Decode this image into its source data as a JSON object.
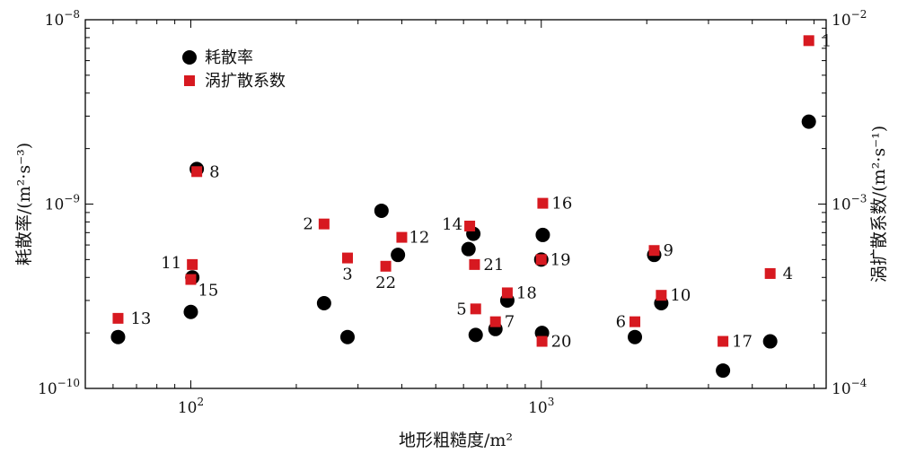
{
  "chart_data": {
    "type": "scatter",
    "xlabel": "地形粗糙度/m²",
    "ylabel_left": "耗散率/(m²·s⁻³)",
    "ylabel_right": "涡扩散系数/(m²·s⁻¹)",
    "x_scale": "log",
    "y_left_scale": "log",
    "y_right_scale": "log",
    "xlim": [
      50,
      6500
    ],
    "ylim_left": [
      1e-10,
      1e-08
    ],
    "ylim_right": [
      0.0001,
      0.01
    ],
    "x_ticks": [
      {
        "value": 100,
        "base": "10",
        "exp": "2"
      },
      {
        "value": 1000,
        "base": "10",
        "exp": "3"
      }
    ],
    "y_left_ticks": [
      {
        "value": 1e-10,
        "base": "10",
        "exp": "−10"
      },
      {
        "value": 1e-09,
        "base": "10",
        "exp": "−9"
      },
      {
        "value": 1e-08,
        "base": "10",
        "exp": "−8"
      }
    ],
    "y_right_ticks": [
      {
        "value": 0.0001,
        "base": "10",
        "exp": "−4"
      },
      {
        "value": 0.001,
        "base": "10",
        "exp": "−3"
      },
      {
        "value": 0.01,
        "base": "10",
        "exp": "−2"
      }
    ],
    "legend_position": "top-left",
    "series": [
      {
        "name": "耗散率",
        "marker": "circle",
        "color": "#000000",
        "axis": "left",
        "points": [
          {
            "x": 5800,
            "y": 2.8e-09
          },
          {
            "x": 62,
            "y": 1.9e-10
          },
          {
            "x": 100,
            "y": 2.6e-10
          },
          {
            "x": 101,
            "y": 4e-10
          },
          {
            "x": 104,
            "y": 1.55e-09
          },
          {
            "x": 240,
            "y": 2.9e-10
          },
          {
            "x": 280,
            "y": 1.9e-10
          },
          {
            "x": 350,
            "y": 9.2e-10
          },
          {
            "x": 390,
            "y": 5.3e-10
          },
          {
            "x": 620,
            "y": 5.7e-10
          },
          {
            "x": 640,
            "y": 6.9e-10
          },
          {
            "x": 650,
            "y": 1.95e-10
          },
          {
            "x": 740,
            "y": 2.1e-10
          },
          {
            "x": 800,
            "y": 3e-10
          },
          {
            "x": 1000,
            "y": 5e-10
          },
          {
            "x": 1005,
            "y": 2e-10
          },
          {
            "x": 1010,
            "y": 6.8e-10
          },
          {
            "x": 1850,
            "y": 1.9e-10
          },
          {
            "x": 2100,
            "y": 5.3e-10
          },
          {
            "x": 2200,
            "y": 2.9e-10
          },
          {
            "x": 3300,
            "y": 1.25e-10
          },
          {
            "x": 4500,
            "y": 1.8e-10
          }
        ]
      },
      {
        "name": "涡扩散系数",
        "marker": "square",
        "color": "#d71920",
        "axis": "right",
        "points": [
          {
            "id": "1",
            "x": 5800,
            "y": 0.0077
          },
          {
            "id": "2",
            "x": 240,
            "y": 0.00078
          },
          {
            "id": "3",
            "x": 280,
            "y": 0.00051
          },
          {
            "id": "4",
            "x": 4500,
            "y": 0.00042
          },
          {
            "id": "5",
            "x": 650,
            "y": 0.00027
          },
          {
            "id": "6",
            "x": 1850,
            "y": 0.00023
          },
          {
            "id": "7",
            "x": 740,
            "y": 0.00023
          },
          {
            "id": "8",
            "x": 104,
            "y": 0.0015
          },
          {
            "id": "9",
            "x": 2100,
            "y": 0.00056
          },
          {
            "id": "10",
            "x": 2200,
            "y": 0.00032
          },
          {
            "id": "11",
            "x": 101,
            "y": 0.00047
          },
          {
            "id": "12",
            "x": 400,
            "y": 0.00066
          },
          {
            "id": "13",
            "x": 62,
            "y": 0.00024
          },
          {
            "id": "14",
            "x": 625,
            "y": 0.00076
          },
          {
            "id": "15",
            "x": 100,
            "y": 0.00039
          },
          {
            "id": "16",
            "x": 1010,
            "y": 0.00101
          },
          {
            "id": "17",
            "x": 3300,
            "y": 0.00018
          },
          {
            "id": "18",
            "x": 800,
            "y": 0.00033
          },
          {
            "id": "19",
            "x": 1000,
            "y": 0.0005
          },
          {
            "id": "20",
            "x": 1005,
            "y": 0.00018
          },
          {
            "id": "21",
            "x": 645,
            "y": 0.00047
          },
          {
            "id": "22",
            "x": 360,
            "y": 0.00046
          }
        ]
      }
    ]
  }
}
